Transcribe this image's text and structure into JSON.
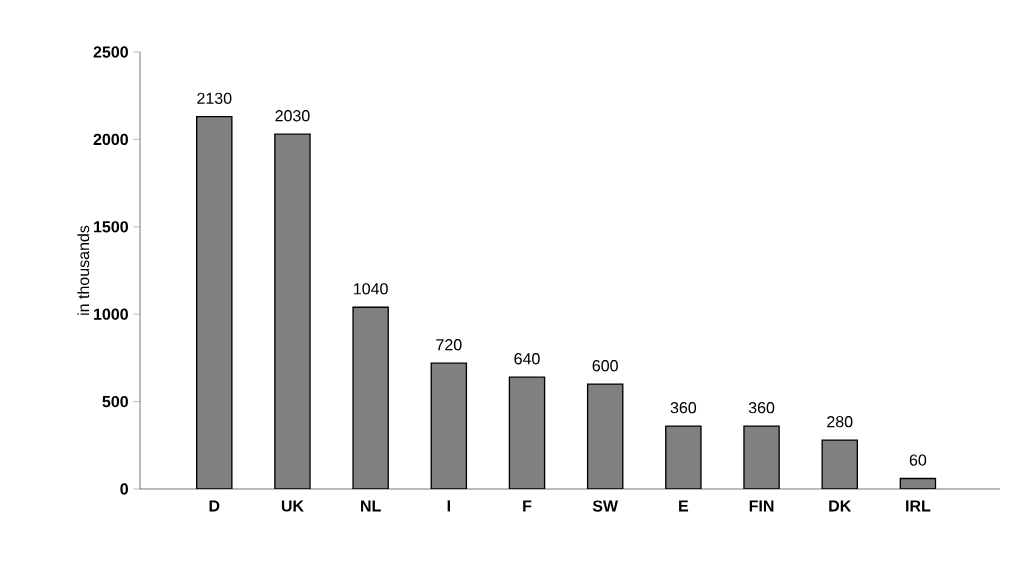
{
  "chart_data": {
    "type": "bar",
    "ylabel": "in thousands",
    "categories": [
      "D",
      "UK",
      "NL",
      "I",
      "F",
      "SW",
      "E",
      "FIN",
      "DK",
      "IRL"
    ],
    "values": [
      2130,
      2030,
      1040,
      720,
      640,
      600,
      360,
      360,
      280,
      60
    ],
    "color": "#808080",
    "ylim": [
      0,
      2500
    ],
    "yticks": [
      0,
      500,
      1000,
      1500,
      2000,
      2500
    ],
    "data_labels": true
  }
}
